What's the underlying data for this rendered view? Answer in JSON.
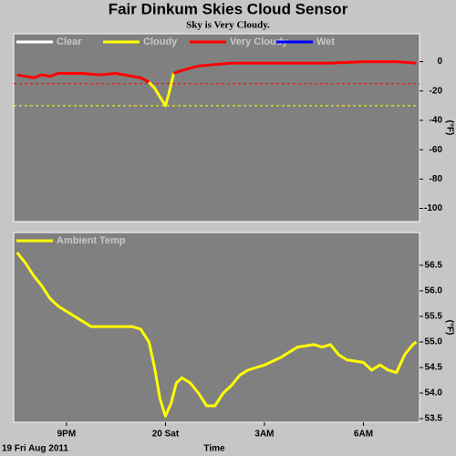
{
  "title": "Fair Dinkum Skies Cloud Sensor",
  "subtitle": "Sky is Very Cloudy.",
  "chart_data": [
    {
      "type": "line",
      "legend": [
        {
          "name": "Clear",
          "color": "#ffffff"
        },
        {
          "name": "Cloudy",
          "color": "#ffff00",
          "threshold": -30
        },
        {
          "name": "Very Cloudy",
          "color": "#ff0000",
          "threshold": -15
        },
        {
          "name": "Wet",
          "color": "#0000ff"
        }
      ],
      "x": [
        19.5,
        19.75,
        20.0,
        20.25,
        20.5,
        20.75,
        21.0,
        21.5,
        22.0,
        22.5,
        23.0,
        23.25,
        23.5,
        23.67,
        23.83,
        24.0,
        24.1,
        24.25,
        24.5,
        25.0,
        25.5,
        26.0,
        27.0,
        28.0,
        29.0,
        30.0,
        31.0,
        31.6
      ],
      "values": [
        -9,
        -10,
        -11,
        -9,
        -10,
        -8,
        -8,
        -8,
        -9,
        -8,
        -10,
        -11,
        -14,
        -18,
        -24,
        -30,
        -22,
        -8,
        -6,
        -3,
        -2,
        -1,
        -1,
        -1,
        -1,
        0,
        0,
        -1
      ],
      "xlim": [
        19.4,
        31.7
      ],
      "ylim": [
        -109,
        19
      ],
      "yticks": [
        0,
        -20,
        -40,
        -60,
        -80,
        -100
      ],
      "y_label": "(°F)",
      "grid": false
    },
    {
      "type": "line",
      "x": [
        19.5,
        19.75,
        20.0,
        20.25,
        20.5,
        20.75,
        21.0,
        21.25,
        21.5,
        21.75,
        22.0,
        22.5,
        23.0,
        23.25,
        23.5,
        23.67,
        23.83,
        24.0,
        24.17,
        24.33,
        24.5,
        24.75,
        25.0,
        25.25,
        25.5,
        25.75,
        26.0,
        26.25,
        26.5,
        27.0,
        27.5,
        28.0,
        28.5,
        28.75,
        29.0,
        29.25,
        29.5,
        30.0,
        30.25,
        30.5,
        30.75,
        31.0,
        31.25,
        31.5,
        31.6
      ],
      "series": [
        {
          "name": "Ambient Temp",
          "color": "#ffff00",
          "values": [
            56.75,
            56.55,
            56.3,
            56.1,
            55.85,
            55.7,
            55.6,
            55.5,
            55.4,
            55.3,
            55.3,
            55.3,
            55.3,
            55.25,
            55.0,
            54.5,
            53.9,
            53.55,
            53.8,
            54.2,
            54.3,
            54.2,
            54.0,
            53.75,
            53.75,
            54.0,
            54.15,
            54.35,
            54.45,
            54.55,
            54.7,
            54.9,
            54.95,
            54.9,
            54.95,
            54.75,
            54.65,
            54.6,
            54.45,
            54.55,
            54.45,
            54.4,
            54.75,
            54.95,
            55.0
          ]
        }
      ],
      "xlim": [
        19.4,
        31.7
      ],
      "xticks": [
        {
          "value": 21,
          "label": "9PM"
        },
        {
          "value": 24,
          "label": "20 Sat"
        },
        {
          "value": 27,
          "label": "3AM"
        },
        {
          "value": 30,
          "label": "6AM"
        }
      ],
      "ylim": [
        53.43,
        57.14
      ],
      "yticks": [
        {
          "value": 56.5,
          "label": "56.5"
        },
        {
          "value": 56,
          "label": "56.0"
        },
        {
          "value": 55.5,
          "label": "55.5"
        },
        {
          "value": 55,
          "label": "55.0"
        },
        {
          "value": 54.5,
          "label": "54.5"
        },
        {
          "value": 54,
          "label": "54.0"
        },
        {
          "value": 53.5,
          "label": "53.5"
        }
      ],
      "y_label": "(°F)",
      "x_label": "Time",
      "date_label": "19 Fri Aug 2011",
      "grid": false
    }
  ]
}
